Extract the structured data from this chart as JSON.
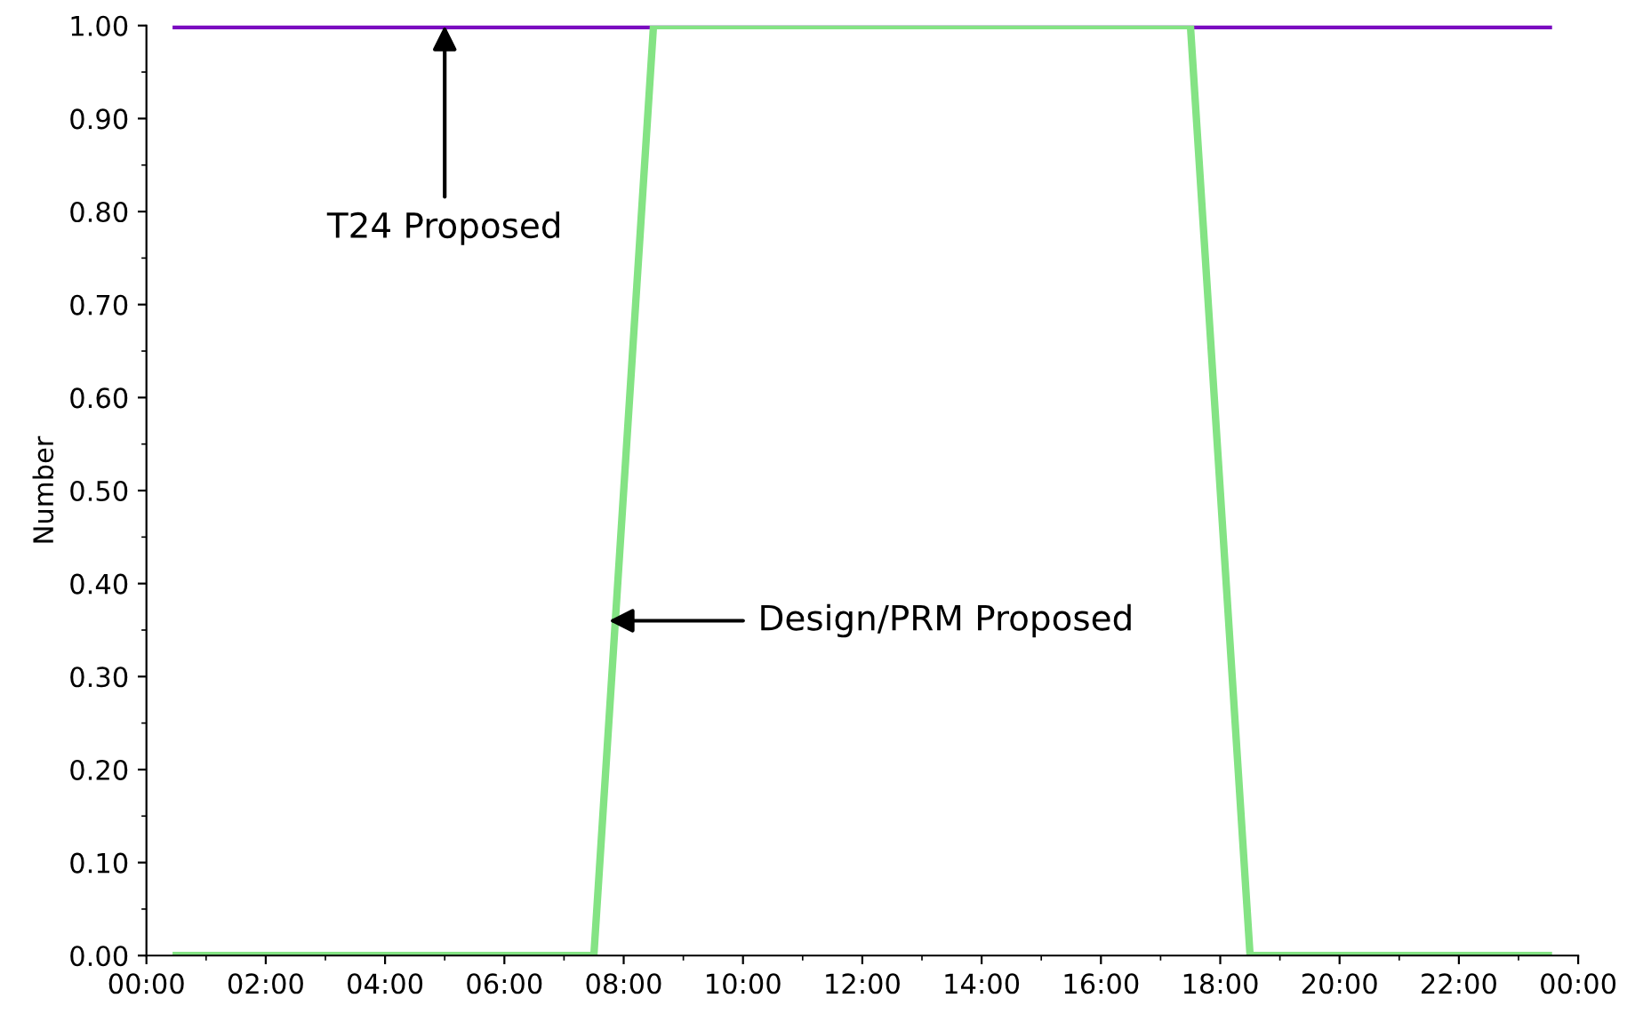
{
  "chart_data": {
    "type": "line",
    "ylabel": "Number",
    "series": [
      {
        "color": "#7a0bc0",
        "x": [
          0.5,
          23.5
        ],
        "values": [
          1.0,
          1.0
        ]
      },
      {
        "color": "#84e384",
        "x": [
          0.5,
          7.5,
          8.5,
          17.5,
          18.5,
          23.5
        ],
        "values": [
          0,
          0,
          1,
          1,
          0,
          0
        ]
      }
    ],
    "xlim": [
      0,
      24
    ],
    "ylim": [
      0,
      1
    ],
    "xticks": [
      {
        "value": 0,
        "label": "00:00"
      },
      {
        "value": 2,
        "label": "02:00"
      },
      {
        "value": 4,
        "label": "04:00"
      },
      {
        "value": 6,
        "label": "06:00"
      },
      {
        "value": 8,
        "label": "08:00"
      },
      {
        "value": 10,
        "label": "10:00"
      },
      {
        "value": 12,
        "label": "12:00"
      },
      {
        "value": 14,
        "label": "14:00"
      },
      {
        "value": 16,
        "label": "16:00"
      },
      {
        "value": 18,
        "label": "18:00"
      },
      {
        "value": 20,
        "label": "20:00"
      },
      {
        "value": 22,
        "label": "22:00"
      },
      {
        "value": 24,
        "label": "00:00"
      }
    ],
    "yticks": [
      {
        "value": 0,
        "label": "0.00"
      },
      {
        "value": 0.1,
        "label": "0.10"
      },
      {
        "value": 0.2,
        "label": "0.20"
      },
      {
        "value": 0.3,
        "label": "0.30"
      },
      {
        "value": 0.4,
        "label": "0.40"
      },
      {
        "value": 0.5,
        "label": "0.50"
      },
      {
        "value": 0.6,
        "label": "0.60"
      },
      {
        "value": 0.7,
        "label": "0.70"
      },
      {
        "value": 0.8,
        "label": "0.80"
      },
      {
        "value": 0.9,
        "label": "0.90"
      },
      {
        "value": 1.0,
        "label": "1.00"
      }
    ],
    "annotations": [
      {
        "text": "T24 Proposed",
        "x": 5,
        "y": 1.0
      },
      {
        "text": "Design/PRM Proposed",
        "x": 7.75,
        "y": 0.36
      }
    ],
    "grid": false,
    "legend": false,
    "marker": "none",
    "line_style": "solid"
  }
}
